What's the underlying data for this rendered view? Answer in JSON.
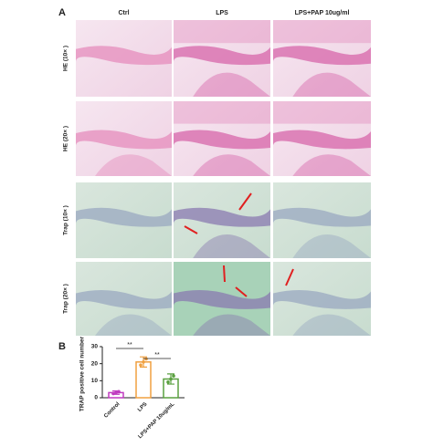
{
  "panel_a": {
    "label": "A",
    "columns": [
      "Ctrl",
      "LPS",
      "LPS+PAP 10ug/ml"
    ],
    "rows": [
      "HE (10× )",
      "HE (20× )",
      "Trap (10× )",
      "Trap (20× )"
    ]
  },
  "chart_data": {
    "type": "bar",
    "panel_label": "B",
    "y_label": "TRAP positive cell number",
    "categories": [
      "Control",
      "LPS",
      "LPS+PAP 10ug/mL"
    ],
    "values": [
      3,
      21,
      11
    ],
    "errors": [
      1,
      3,
      3
    ],
    "colors": [
      "#c03cc0",
      "#f0a040",
      "#5aa040"
    ],
    "ylim": [
      0,
      30
    ],
    "yticks": [
      0,
      10,
      20,
      30
    ],
    "annotations": [
      "**",
      "**"
    ]
  }
}
